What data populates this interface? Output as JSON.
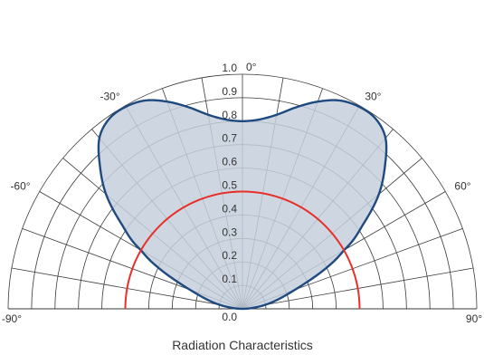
{
  "chart_data": {
    "type": "polar",
    "title": "Radiation Characteristics",
    "angle_range_deg": [
      -90,
      90
    ],
    "radial_range": [
      0,
      1.0
    ],
    "radial_ticks": [
      "0.0",
      "0.1",
      "0.2",
      "0.3",
      "0.4",
      "0.5",
      "0.6",
      "0.7",
      "0.8",
      "0.9",
      "1.0"
    ],
    "angle_ticks": [
      {
        "deg": -90,
        "label": "-90°"
      },
      {
        "deg": -60,
        "label": "-60°"
      },
      {
        "deg": -30,
        "label": "-30°"
      },
      {
        "deg": 0,
        "label": "0°"
      },
      {
        "deg": 30,
        "label": "30°"
      },
      {
        "deg": 60,
        "label": "60°"
      },
      {
        "deg": 90,
        "label": "90°"
      }
    ],
    "grid": {
      "radial_step": 0.1,
      "angle_step_deg": 10
    },
    "series": [
      {
        "color": "#1f4a80",
        "fill": "#c5d0dc",
        "angles_deg": [
          -90,
          -80,
          -70,
          -60,
          -55,
          -50,
          -45,
          -40,
          -35,
          -30,
          -25,
          -20,
          -15,
          -10,
          -5,
          0,
          5,
          10,
          15,
          20,
          25,
          30,
          35,
          40,
          45,
          50,
          55,
          60,
          70,
          80,
          90
        ],
        "values": [
          0.0,
          0.1,
          0.24,
          0.5,
          0.63,
          0.76,
          0.86,
          0.95,
          0.99,
          0.995,
          0.98,
          0.94,
          0.89,
          0.84,
          0.81,
          0.8,
          0.81,
          0.84,
          0.89,
          0.94,
          0.98,
          0.995,
          0.99,
          0.95,
          0.86,
          0.76,
          0.63,
          0.5,
          0.24,
          0.1,
          0.0
        ]
      },
      {
        "color": "#e8302a",
        "angles_deg": [
          -90,
          90
        ],
        "values": [
          0.5,
          0.5
        ]
      }
    ]
  }
}
